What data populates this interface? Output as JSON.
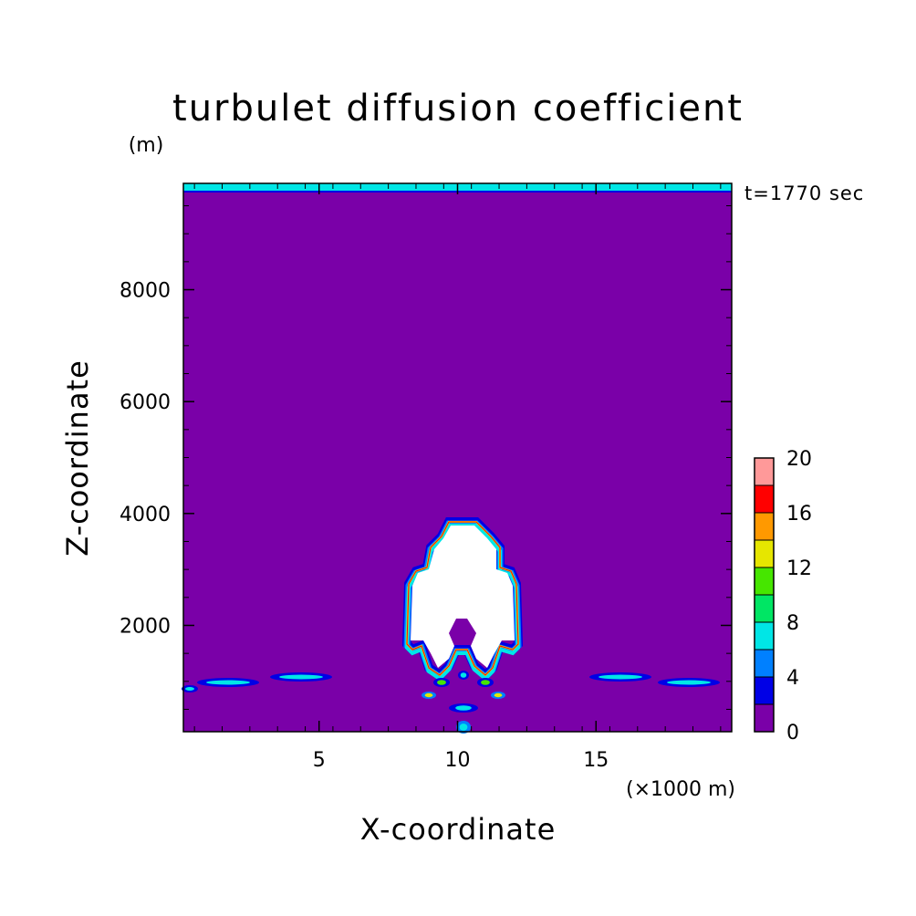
{
  "chart_data": {
    "type": "contour",
    "title": "turbulet diffusion coefficient",
    "xlabel": "X-coordinate",
    "ylabel": "Z-coordinate",
    "x_unit": "(×1000 m)",
    "y_unit": "(m)",
    "time_label": "t=1770 sec",
    "xlim": [
      0.1,
      19.9
    ],
    "ylim": [
      100,
      9900
    ],
    "x_ticks": [
      5,
      10,
      15
    ],
    "x_tick_labels": [
      "5",
      "10",
      "15"
    ],
    "y_ticks": [
      2000,
      4000,
      6000,
      8000
    ],
    "y_tick_labels": [
      "2000",
      "4000",
      "6000",
      "8000"
    ],
    "colorbar": {
      "levels": [
        0,
        2,
        4,
        6,
        8,
        10,
        12,
        14,
        16,
        18,
        20
      ],
      "tick_values": [
        0,
        4,
        8,
        12,
        16,
        20
      ],
      "tick_labels": [
        "0",
        "4",
        "8",
        "12",
        "16",
        "20"
      ],
      "colors": [
        "#7a00a8",
        "#0000e6",
        "#0080ff",
        "#00e6e6",
        "#00e664",
        "#46e600",
        "#e6e600",
        "#ff9900",
        "#ff0000",
        "#ff9999"
      ]
    },
    "background_level_color": "#7a00a8",
    "top_layer_color": "#00e6e6",
    "saturated_region_color": "#ffffff"
  }
}
